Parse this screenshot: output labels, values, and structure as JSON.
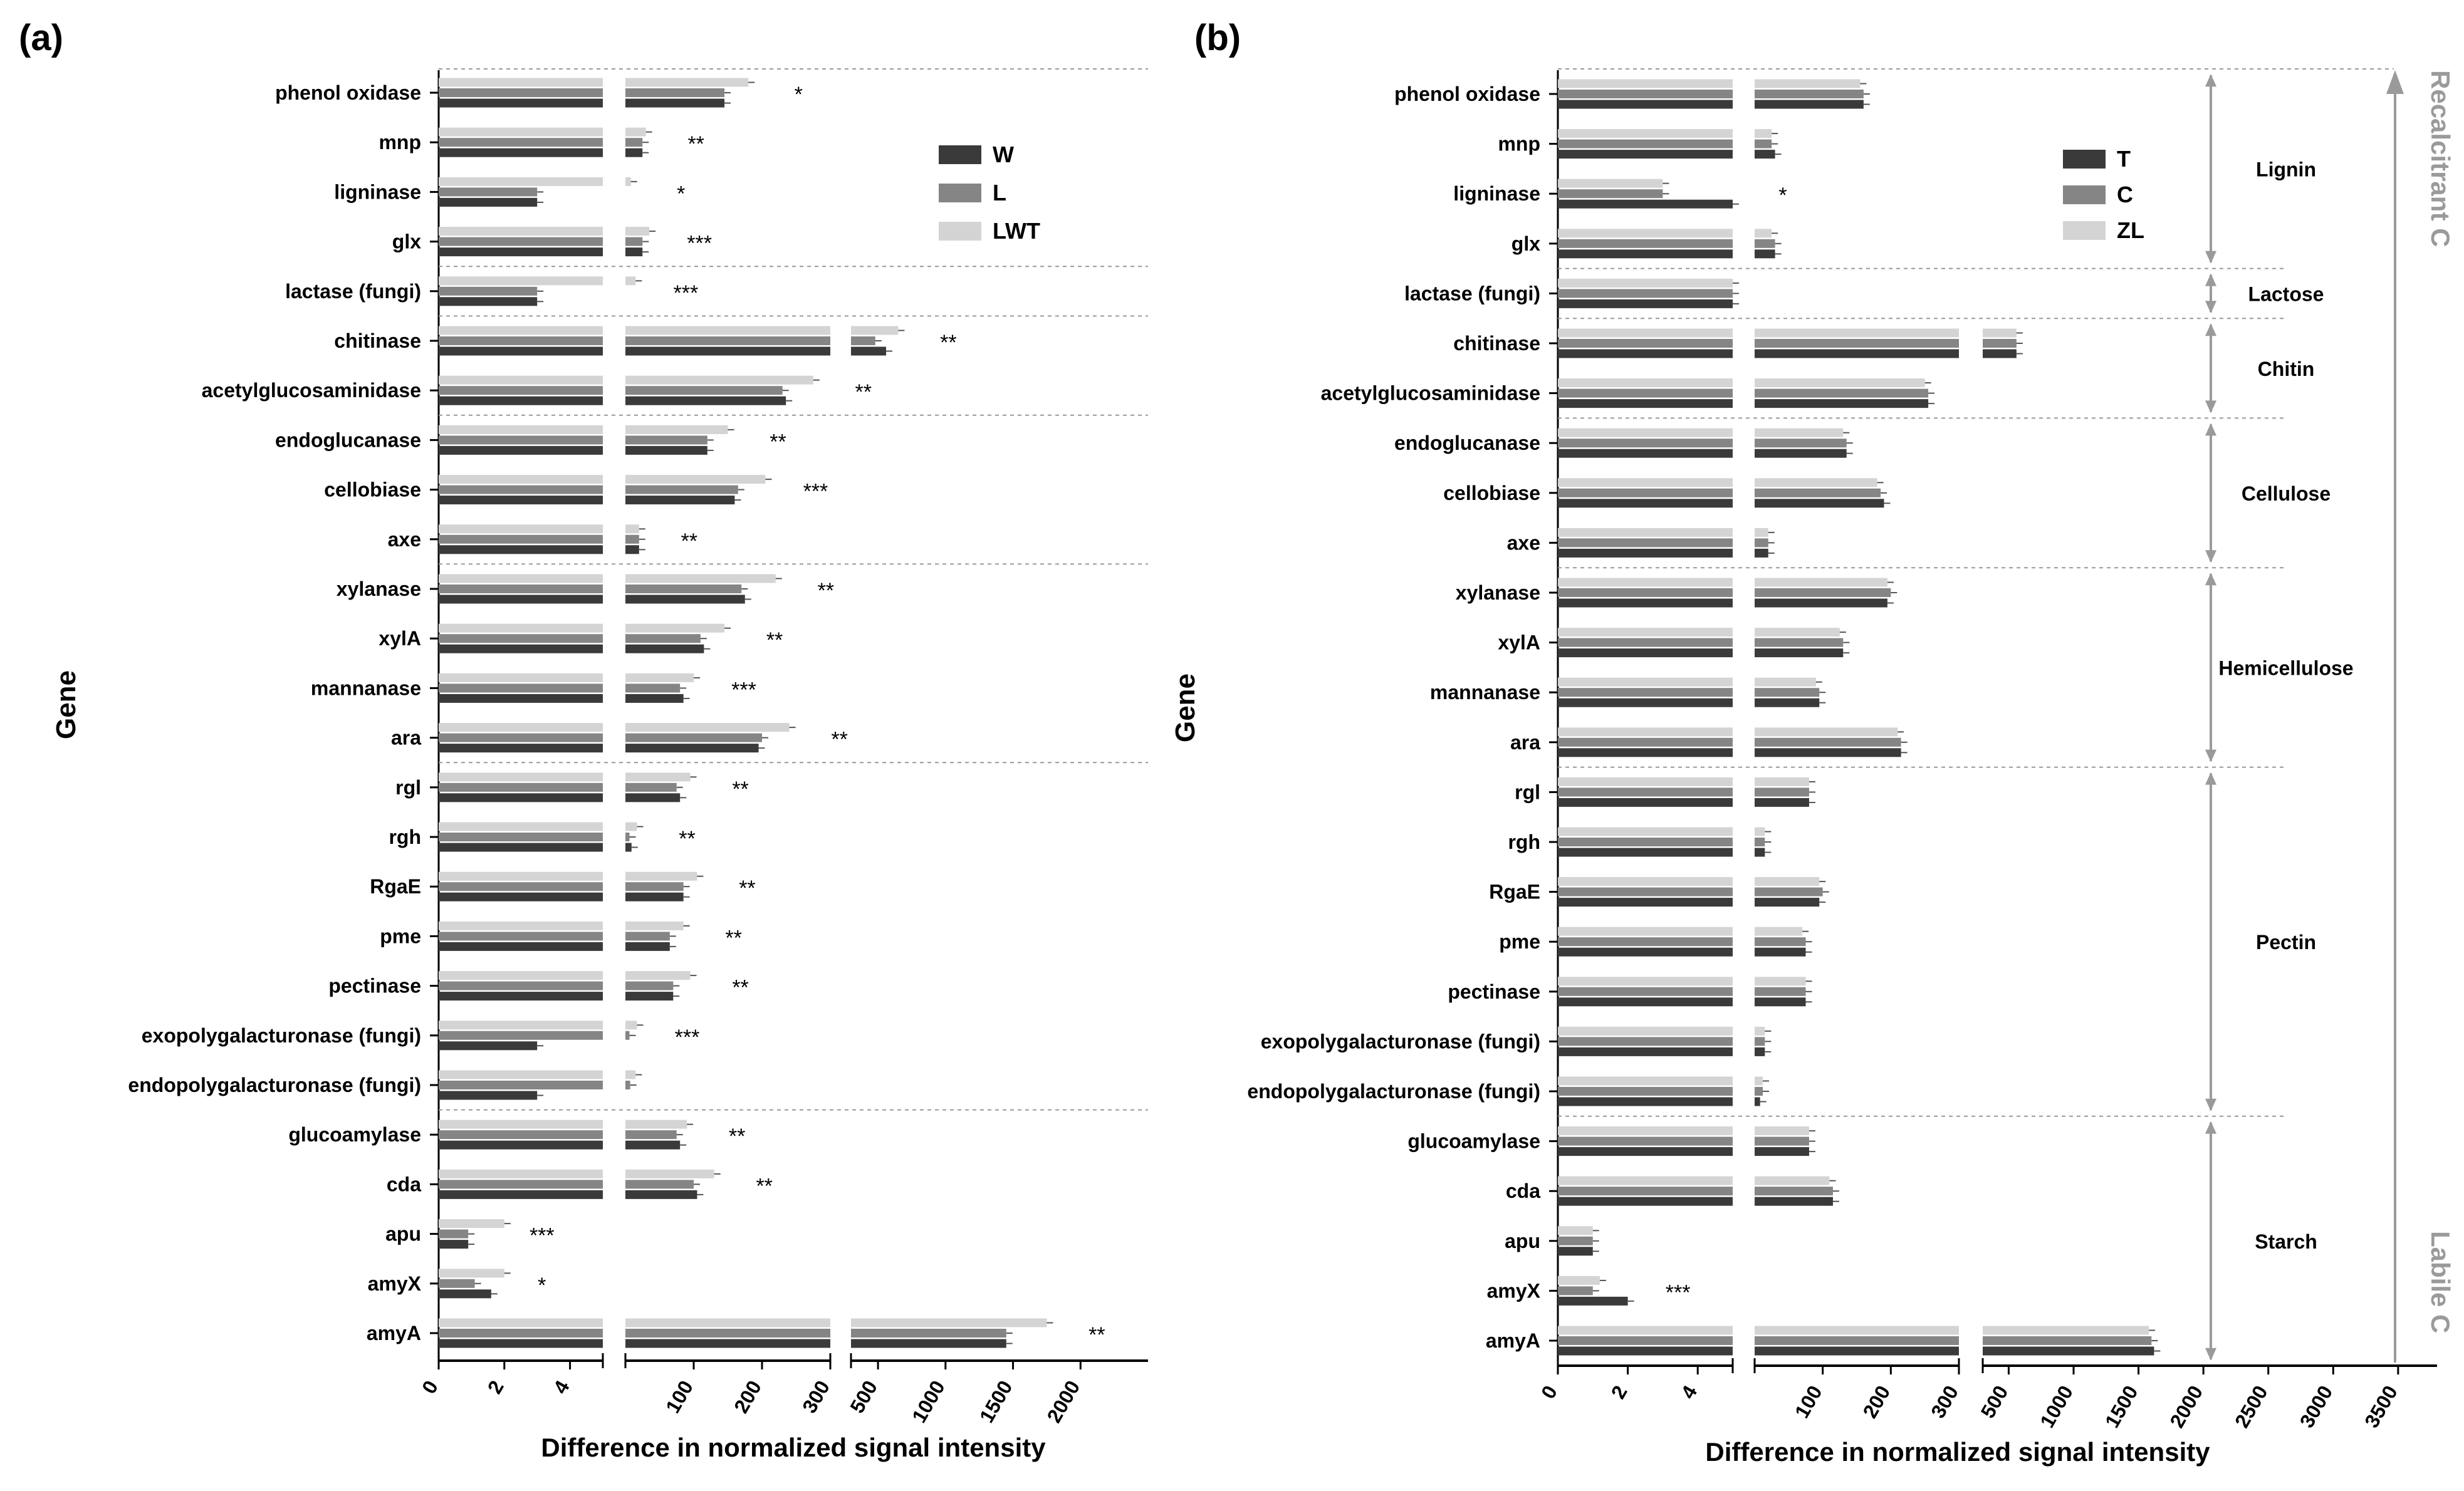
{
  "colors": {
    "dark": "#3a3a3a",
    "mid": "#858585",
    "light": "#d4d4d4",
    "axis": "#000000",
    "separator": "#999999",
    "arrow": "#9a9a9a"
  },
  "chart_data": [
    {
      "type": "bar",
      "orientation": "horizontal",
      "panel_label": "(a)",
      "xlabel": "Difference in normalized signal intensity",
      "ylabel": "Gene",
      "x_axis_type": "broken",
      "x_segments": [
        {
          "range": [
            0,
            5
          ],
          "ticks": [
            0,
            2,
            4
          ]
        },
        {
          "range": [
            0,
            300
          ],
          "ticks": [
            100,
            200,
            300
          ]
        },
        {
          "range": [
            300,
            2500
          ],
          "ticks": [
            500,
            1000,
            1500,
            2000
          ]
        }
      ],
      "legend": [
        "W",
        "L",
        "LWT"
      ],
      "legend_position": "top-right",
      "series": [
        {
          "name": "W",
          "values": [
            145,
            25,
            3,
            25,
            3,
            560,
            235,
            120,
            160,
            20,
            175,
            115,
            85,
            195,
            80,
            9,
            85,
            65,
            70,
            3,
            3,
            80,
            105,
            0.9,
            1.6,
            1450
          ]
        },
        {
          "name": "L",
          "values": [
            145,
            25,
            3,
            25,
            3,
            480,
            230,
            120,
            165,
            20,
            170,
            110,
            80,
            200,
            75,
            6,
            85,
            65,
            70,
            6,
            7,
            75,
            100,
            0.9,
            1.1,
            1450
          ]
        },
        {
          "name": "LWT",
          "values": [
            180,
            30,
            8,
            35,
            15,
            650,
            275,
            150,
            205,
            20,
            220,
            145,
            100,
            240,
            95,
            17,
            105,
            85,
            95,
            17,
            15,
            90,
            130,
            2.0,
            2.0,
            1750
          ]
        }
      ],
      "categories": [
        "phenol oxidase",
        "mnp",
        "ligninase",
        "glx",
        "lactase (fungi)",
        "chitinase",
        "acetylglucosaminidase",
        "endoglucanase",
        "cellobiase",
        "axe",
        "xylanase",
        "xylA",
        "mannanase",
        "ara",
        "rgl",
        "rgh",
        "RgaE",
        "pme",
        "pectinase",
        "exopolygalacturonase (fungi)",
        "endopolygalacturonase (fungi)",
        "glucoamylase",
        "cda",
        "apu",
        "amyX",
        "amyA"
      ],
      "significance": [
        "*",
        "**",
        "*",
        "***",
        "***",
        "**",
        "**",
        "**",
        "***",
        "**",
        "**",
        "**",
        "***",
        "**",
        "**",
        "**",
        "**",
        "**",
        "**",
        "***",
        "",
        "**",
        "**",
        "***",
        "*",
        "**"
      ]
    },
    {
      "type": "bar",
      "orientation": "horizontal",
      "panel_label": "(b)",
      "xlabel": "Difference in normalized signal intensity",
      "ylabel": "Gene",
      "x_axis_type": "broken",
      "x_segments": [
        {
          "range": [
            0,
            5
          ],
          "ticks": [
            0,
            2,
            4
          ]
        },
        {
          "range": [
            0,
            300
          ],
          "ticks": [
            100,
            200,
            300
          ]
        },
        {
          "range": [
            300,
            3800
          ],
          "ticks": [
            500,
            1000,
            1500,
            2000,
            2500,
            3000,
            3500
          ]
        }
      ],
      "legend": [
        "T",
        "C",
        "ZL"
      ],
      "legend_position": "top-right",
      "series": [
        {
          "name": "T",
          "values": [
            160,
            30,
            5,
            30,
            5,
            560,
            255,
            135,
            190,
            20,
            195,
            130,
            95,
            215,
            80,
            15,
            95,
            75,
            75,
            15,
            8,
            80,
            115,
            1.0,
            2.0,
            1620
          ]
        },
        {
          "name": "C",
          "values": [
            160,
            25,
            3,
            30,
            5,
            560,
            255,
            135,
            185,
            20,
            200,
            130,
            95,
            215,
            80,
            15,
            100,
            75,
            75,
            15,
            12,
            80,
            115,
            1.0,
            1.0,
            1600
          ]
        },
        {
          "name": "ZL",
          "values": [
            155,
            25,
            3,
            25,
            5,
            560,
            250,
            130,
            180,
            20,
            195,
            125,
            90,
            210,
            80,
            15,
            95,
            70,
            75,
            15,
            12,
            80,
            110,
            1.0,
            1.2,
            1580
          ]
        }
      ],
      "categories": [
        "phenol oxidase",
        "mnp",
        "ligninase",
        "glx",
        "lactase (fungi)",
        "chitinase",
        "acetylglucosaminidase",
        "endoglucanase",
        "cellobiase",
        "axe",
        "xylanase",
        "xylA",
        "mannanase",
        "ara",
        "rgl",
        "rgh",
        "RgaE",
        "pme",
        "pectinase",
        "exopolygalacturonase (fungi)",
        "endopolygalacturonase (fungi)",
        "glucoamylase",
        "cda",
        "apu",
        "amyX",
        "amyA"
      ],
      "significance": [
        "",
        "",
        "*",
        "",
        "",
        "",
        "",
        "",
        "",
        "",
        "",
        "",
        "",
        "",
        "",
        "",
        "",
        "",
        "",
        "",
        "",
        "",
        "",
        "",
        "***",
        ""
      ],
      "groups": [
        {
          "name": "Lignin",
          "first": 0,
          "last": 3
        },
        {
          "name": "Lactose",
          "first": 4,
          "last": 4
        },
        {
          "name": "Chitin",
          "first": 5,
          "last": 6
        },
        {
          "name": "Cellulose",
          "first": 7,
          "last": 9
        },
        {
          "name": "Hemicellulose",
          "first": 10,
          "last": 13
        },
        {
          "name": "Pectin",
          "first": 14,
          "last": 20
        },
        {
          "name": "Starch",
          "first": 21,
          "last": 25
        }
      ],
      "gradient_labels": {
        "top": "Recalcitrant C",
        "bottom": "Labile C"
      }
    }
  ]
}
